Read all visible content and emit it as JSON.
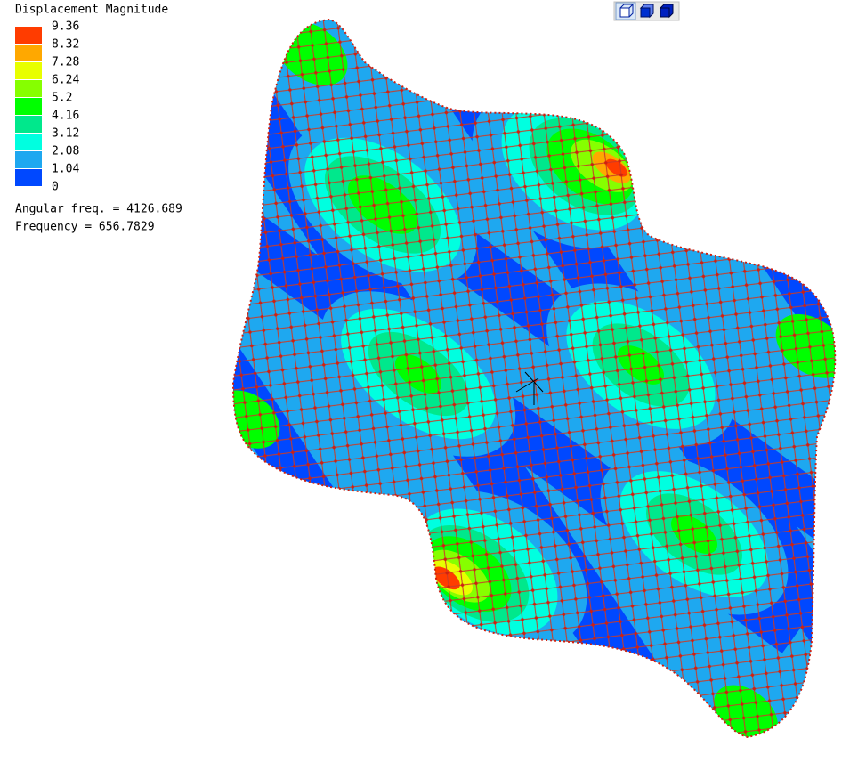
{
  "legend": {
    "title": "Displacement Magnitude",
    "labels": [
      "9.36",
      "8.32",
      "7.28",
      "6.24",
      "5.2",
      "4.16",
      "3.12",
      "2.08",
      "1.04",
      "0"
    ],
    "colors": [
      "#ff3c00",
      "#ffa800",
      "#e8ff00",
      "#86ff00",
      "#00ff00",
      "#00e88c",
      "#00ffe0",
      "#1ea8f0",
      "#0048ff"
    ]
  },
  "info": {
    "angular_freq": "Angular freq. = 4126.689",
    "frequency": "Frequency = 656.7829"
  }
}
